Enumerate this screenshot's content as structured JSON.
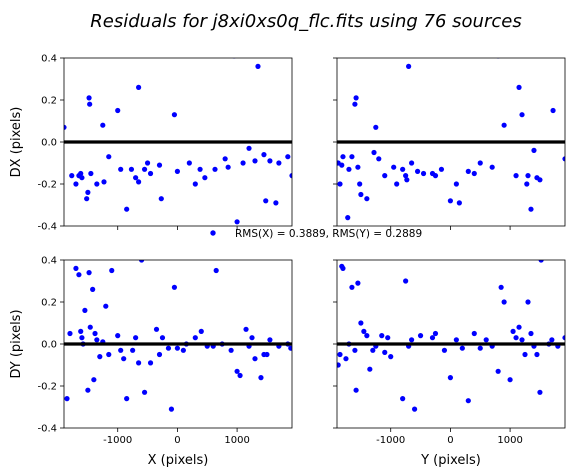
{
  "figure": {
    "title": "Residuals for j8xi0xs0q_flc.fits using 76 sources",
    "rms_text": "RMS(X) = 0.3889, RMS(Y) = 0.2889"
  },
  "chart_data": [
    {
      "type": "scatter",
      "panel": "dx-vs-x",
      "xlabel": "",
      "ylabel": "DX (pixels)",
      "xlim": [
        -1900,
        1920
      ],
      "ylim": [
        -0.4,
        0.4
      ],
      "yticks": [
        "0.4",
        "0.2",
        "0.0",
        "-0.2",
        "-0.4"
      ],
      "xticks": [],
      "point_color": "#0000ff",
      "zero_line": 0,
      "points": [
        {
          "x": -1900,
          "y": 0.07
        },
        {
          "x": -1770,
          "y": -0.16
        },
        {
          "x": -1700,
          "y": -0.2
        },
        {
          "x": -1650,
          "y": -0.16
        },
        {
          "x": -1620,
          "y": -0.15
        },
        {
          "x": -1600,
          "y": -0.17
        },
        {
          "x": -1520,
          "y": -0.27
        },
        {
          "x": -1500,
          "y": -0.24
        },
        {
          "x": -1480,
          "y": 0.21
        },
        {
          "x": -1470,
          "y": 0.18
        },
        {
          "x": -1450,
          "y": -0.15
        },
        {
          "x": -1350,
          "y": -0.2
        },
        {
          "x": -1250,
          "y": 0.08
        },
        {
          "x": -1230,
          "y": -0.19
        },
        {
          "x": -1150,
          "y": -0.07
        },
        {
          "x": -1000,
          "y": 0.15
        },
        {
          "x": -950,
          "y": -0.13
        },
        {
          "x": -850,
          "y": -0.32
        },
        {
          "x": -770,
          "y": -0.13
        },
        {
          "x": -700,
          "y": -0.17
        },
        {
          "x": -650,
          "y": -0.19
        },
        {
          "x": -650,
          "y": 0.26
        },
        {
          "x": -550,
          "y": -0.13
        },
        {
          "x": -500,
          "y": -0.1
        },
        {
          "x": -450,
          "y": -0.15
        },
        {
          "x": -300,
          "y": -0.11
        },
        {
          "x": -270,
          "y": -0.27
        },
        {
          "x": -50,
          "y": 0.13
        },
        {
          "x": 0,
          "y": -0.14
        },
        {
          "x": 200,
          "y": -0.1
        },
        {
          "x": 300,
          "y": -0.2
        },
        {
          "x": 380,
          "y": -0.13
        },
        {
          "x": 460,
          "y": -0.17
        },
        {
          "x": 630,
          "y": -0.13
        },
        {
          "x": 800,
          "y": -0.08
        },
        {
          "x": 850,
          "y": -0.12
        },
        {
          "x": 950,
          "y": 0.41
        },
        {
          "x": 1000,
          "y": -0.38
        },
        {
          "x": 1100,
          "y": -0.1
        },
        {
          "x": 1200,
          "y": -0.03
        },
        {
          "x": 1300,
          "y": -0.09
        },
        {
          "x": 1350,
          "y": 0.36
        },
        {
          "x": 1450,
          "y": -0.06
        },
        {
          "x": 1480,
          "y": -0.28
        },
        {
          "x": 1550,
          "y": -0.09
        },
        {
          "x": 1650,
          "y": -0.29
        },
        {
          "x": 1700,
          "y": -0.1
        },
        {
          "x": 1850,
          "y": -0.07
        },
        {
          "x": 1920,
          "y": -0.16
        }
      ]
    },
    {
      "type": "scatter",
      "panel": "dx-vs-y",
      "xlabel": "",
      "ylabel": "",
      "xlim": [
        -1900,
        1920
      ],
      "ylim": [
        -0.4,
        0.4
      ],
      "yticks": [],
      "xticks": [],
      "point_color": "#0000ff",
      "zero_line": 0,
      "points": [
        {
          "x": -1880,
          "y": -0.1
        },
        {
          "x": -1850,
          "y": -0.2
        },
        {
          "x": -1820,
          "y": -0.11
        },
        {
          "x": -1800,
          "y": -0.07
        },
        {
          "x": -1720,
          "y": -0.36
        },
        {
          "x": -1700,
          "y": -0.13
        },
        {
          "x": -1650,
          "y": -0.07
        },
        {
          "x": -1600,
          "y": 0.18
        },
        {
          "x": -1580,
          "y": 0.21
        },
        {
          "x": -1550,
          "y": -0.12
        },
        {
          "x": -1520,
          "y": -0.2
        },
        {
          "x": -1500,
          "y": -0.25
        },
        {
          "x": -1400,
          "y": -0.27
        },
        {
          "x": -1280,
          "y": -0.05
        },
        {
          "x": -1250,
          "y": 0.07
        },
        {
          "x": -1200,
          "y": -0.08
        },
        {
          "x": -1100,
          "y": -0.16
        },
        {
          "x": -950,
          "y": -0.12
        },
        {
          "x": -900,
          "y": -0.2
        },
        {
          "x": -800,
          "y": -0.13
        },
        {
          "x": -750,
          "y": -0.16
        },
        {
          "x": -730,
          "y": -0.18
        },
        {
          "x": -700,
          "y": 0.36
        },
        {
          "x": -650,
          "y": -0.1
        },
        {
          "x": -550,
          "y": -0.14
        },
        {
          "x": -450,
          "y": -0.15
        },
        {
          "x": -300,
          "y": -0.15
        },
        {
          "x": -250,
          "y": -0.16
        },
        {
          "x": -150,
          "y": -0.13
        },
        {
          "x": 0,
          "y": -0.28
        },
        {
          "x": 100,
          "y": -0.2
        },
        {
          "x": 150,
          "y": -0.29
        },
        {
          "x": 300,
          "y": -0.14
        },
        {
          "x": 400,
          "y": -0.15
        },
        {
          "x": 500,
          "y": -0.1
        },
        {
          "x": 700,
          "y": -0.12
        },
        {
          "x": 800,
          "y": 0.41
        },
        {
          "x": 900,
          "y": 0.08
        },
        {
          "x": 1100,
          "y": -0.16
        },
        {
          "x": 1150,
          "y": 0.26
        },
        {
          "x": 1200,
          "y": 0.13
        },
        {
          "x": 1280,
          "y": -0.2
        },
        {
          "x": 1300,
          "y": -0.16
        },
        {
          "x": 1350,
          "y": -0.32
        },
        {
          "x": 1400,
          "y": -0.04
        },
        {
          "x": 1450,
          "y": -0.17
        },
        {
          "x": 1500,
          "y": -0.18
        },
        {
          "x": 1720,
          "y": 0.15
        },
        {
          "x": 1920,
          "y": -0.08
        }
      ]
    },
    {
      "type": "scatter",
      "panel": "dy-vs-x",
      "xlabel": "X (pixels)",
      "ylabel": "DY (pixels)",
      "xlim": [
        -1900,
        1920
      ],
      "ylim": [
        -0.4,
        0.4
      ],
      "yticks": [
        "0.4",
        "0.2",
        "0.0",
        "-0.2",
        "-0.4"
      ],
      "xticks": [
        "-1000",
        "0",
        "1000"
      ],
      "point_color": "#0000ff",
      "zero_line": 0,
      "points": [
        {
          "x": -1800,
          "y": 0.05
        },
        {
          "x": -1850,
          "y": -0.26
        },
        {
          "x": -1700,
          "y": 0.36
        },
        {
          "x": -1650,
          "y": 0.33
        },
        {
          "x": -1620,
          "y": 0.06
        },
        {
          "x": -1600,
          "y": 0.03
        },
        {
          "x": -1580,
          "y": 0.0
        },
        {
          "x": -1550,
          "y": 0.16
        },
        {
          "x": -1500,
          "y": -0.22
        },
        {
          "x": -1480,
          "y": 0.34
        },
        {
          "x": -1460,
          "y": 0.08
        },
        {
          "x": -1420,
          "y": 0.26
        },
        {
          "x": -1400,
          "y": -0.17
        },
        {
          "x": -1380,
          "y": 0.05
        },
        {
          "x": -1350,
          "y": 0.02
        },
        {
          "x": -1300,
          "y": -0.06
        },
        {
          "x": -1250,
          "y": 0.01
        },
        {
          "x": -1200,
          "y": 0.18
        },
        {
          "x": -1150,
          "y": -0.05
        },
        {
          "x": -1100,
          "y": 0.35
        },
        {
          "x": -1000,
          "y": 0.04
        },
        {
          "x": -950,
          "y": -0.03
        },
        {
          "x": -900,
          "y": -0.07
        },
        {
          "x": -850,
          "y": -0.26
        },
        {
          "x": -750,
          "y": -0.03
        },
        {
          "x": -700,
          "y": 0.03
        },
        {
          "x": -650,
          "y": -0.09
        },
        {
          "x": -600,
          "y": 0.4
        },
        {
          "x": -550,
          "y": -0.23
        },
        {
          "x": -450,
          "y": -0.09
        },
        {
          "x": -350,
          "y": 0.07
        },
        {
          "x": -300,
          "y": -0.05
        },
        {
          "x": -250,
          "y": 0.03
        },
        {
          "x": -150,
          "y": -0.02
        },
        {
          "x": -100,
          "y": -0.31
        },
        {
          "x": -50,
          "y": 0.27
        },
        {
          "x": 0,
          "y": -0.02
        },
        {
          "x": 100,
          "y": -0.03
        },
        {
          "x": 150,
          "y": 0.0
        },
        {
          "x": 300,
          "y": 0.03
        },
        {
          "x": 400,
          "y": 0.06
        },
        {
          "x": 500,
          "y": -0.01
        },
        {
          "x": 600,
          "y": -0.01
        },
        {
          "x": 650,
          "y": 0.35
        },
        {
          "x": 750,
          "y": 0.0
        },
        {
          "x": 900,
          "y": -0.03
        },
        {
          "x": 1000,
          "y": -0.13
        },
        {
          "x": 1050,
          "y": -0.15
        },
        {
          "x": 1150,
          "y": 0.07
        },
        {
          "x": 1200,
          "y": -0.01
        },
        {
          "x": 1250,
          "y": 0.03
        },
        {
          "x": 1300,
          "y": -0.07
        },
        {
          "x": 1400,
          "y": -0.16
        },
        {
          "x": 1450,
          "y": -0.05
        },
        {
          "x": 1500,
          "y": -0.05
        },
        {
          "x": 1550,
          "y": 0.02
        },
        {
          "x": 1700,
          "y": -0.01
        },
        {
          "x": 1850,
          "y": 0.0
        },
        {
          "x": 1900,
          "y": -0.02
        }
      ]
    },
    {
      "type": "scatter",
      "panel": "dy-vs-y",
      "xlabel": "Y (pixels)",
      "ylabel": "",
      "xlim": [
        -1900,
        1920
      ],
      "ylim": [
        -0.4,
        0.4
      ],
      "yticks": [],
      "xticks": [
        "-1000",
        "0",
        "1000"
      ],
      "point_color": "#0000ff",
      "zero_line": 0,
      "points": [
        {
          "x": -1880,
          "y": -0.1
        },
        {
          "x": -1850,
          "y": -0.05
        },
        {
          "x": -1820,
          "y": 0.37
        },
        {
          "x": -1800,
          "y": 0.36
        },
        {
          "x": -1750,
          "y": -0.07
        },
        {
          "x": -1700,
          "y": 0.0
        },
        {
          "x": -1650,
          "y": 0.27
        },
        {
          "x": -1600,
          "y": -0.03
        },
        {
          "x": -1580,
          "y": -0.22
        },
        {
          "x": -1550,
          "y": 0.29
        },
        {
          "x": -1500,
          "y": 0.1
        },
        {
          "x": -1450,
          "y": 0.06
        },
        {
          "x": -1400,
          "y": 0.04
        },
        {
          "x": -1350,
          "y": -0.12
        },
        {
          "x": -1300,
          "y": -0.03
        },
        {
          "x": -1250,
          "y": -0.01
        },
        {
          "x": -1150,
          "y": 0.04
        },
        {
          "x": -1100,
          "y": -0.04
        },
        {
          "x": -1050,
          "y": 0.03
        },
        {
          "x": -1000,
          "y": -0.06
        },
        {
          "x": -800,
          "y": -0.26
        },
        {
          "x": -750,
          "y": 0.3
        },
        {
          "x": -700,
          "y": -0.01
        },
        {
          "x": -650,
          "y": 0.02
        },
        {
          "x": -600,
          "y": -0.31
        },
        {
          "x": -500,
          "y": 0.04
        },
        {
          "x": -300,
          "y": 0.03
        },
        {
          "x": -250,
          "y": 0.05
        },
        {
          "x": -100,
          "y": -0.03
        },
        {
          "x": 0,
          "y": -0.16
        },
        {
          "x": 100,
          "y": 0.02
        },
        {
          "x": 200,
          "y": -0.02
        },
        {
          "x": 300,
          "y": -0.27
        },
        {
          "x": 400,
          "y": 0.05
        },
        {
          "x": 500,
          "y": -0.02
        },
        {
          "x": 600,
          "y": 0.02
        },
        {
          "x": 700,
          "y": -0.01
        },
        {
          "x": 800,
          "y": -0.13
        },
        {
          "x": 850,
          "y": 0.27
        },
        {
          "x": 900,
          "y": 0.2
        },
        {
          "x": 1000,
          "y": -0.17
        },
        {
          "x": 1050,
          "y": 0.06
        },
        {
          "x": 1100,
          "y": 0.03
        },
        {
          "x": 1150,
          "y": 0.08
        },
        {
          "x": 1200,
          "y": 0.02
        },
        {
          "x": 1250,
          "y": -0.05
        },
        {
          "x": 1300,
          "y": 0.2
        },
        {
          "x": 1350,
          "y": 0.05
        },
        {
          "x": 1400,
          "y": -0.01
        },
        {
          "x": 1450,
          "y": -0.05
        },
        {
          "x": 1500,
          "y": -0.23
        },
        {
          "x": 1520,
          "y": 0.4
        },
        {
          "x": 1650,
          "y": 0.0
        },
        {
          "x": 1700,
          "y": 0.02
        },
        {
          "x": 1800,
          "y": -0.01
        },
        {
          "x": 1920,
          "y": 0.03
        }
      ]
    }
  ]
}
